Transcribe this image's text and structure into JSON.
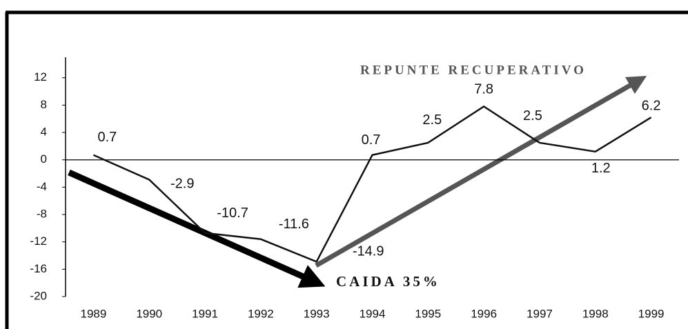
{
  "chart_data": {
    "type": "line",
    "categories": [
      "1989",
      "1990",
      "1991",
      "1992",
      "1993",
      "1994",
      "1995",
      "1996",
      "1997",
      "1998",
      "1999"
    ],
    "values": [
      0.7,
      -2.9,
      -10.7,
      -11.6,
      -14.9,
      0.7,
      2.5,
      7.8,
      2.5,
      1.2,
      6.2
    ],
    "color": "#111111",
    "ylim": [
      -20,
      15
    ],
    "yticks": [
      -20,
      -16,
      -12,
      -8,
      -4,
      0,
      4,
      8,
      12
    ],
    "annotations": [
      "REPUNTE RECUPERATIVO",
      "CAIDA 35%"
    ]
  }
}
